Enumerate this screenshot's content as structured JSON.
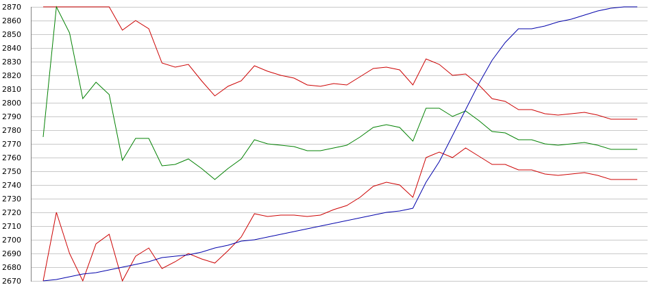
{
  "chart_data": {
    "type": "line",
    "title": "",
    "xlabel": "",
    "ylabel": "",
    "ylim": [
      2670,
      2870
    ],
    "yticks": [
      2670,
      2680,
      2690,
      2700,
      2710,
      2720,
      2730,
      2740,
      2750,
      2760,
      2770,
      2780,
      2790,
      2800,
      2810,
      2820,
      2830,
      2840,
      2850,
      2860,
      2870
    ],
    "grid": true,
    "legend": "none",
    "x": [
      0,
      1,
      2,
      3,
      4,
      5,
      6,
      7,
      8,
      9,
      10,
      11,
      12,
      13,
      14,
      15,
      16,
      17,
      18,
      19,
      20,
      21,
      22,
      23,
      24,
      25,
      26,
      27,
      28,
      29,
      30,
      31,
      32,
      33,
      34,
      35,
      36,
      37,
      38,
      39,
      40,
      41,
      42,
      43,
      44,
      45
    ],
    "series": [
      {
        "color": "#cc0000",
        "values": [
          2870,
          2870,
          2870,
          2870,
          2870,
          2870,
          2853,
          2860,
          2854,
          2829,
          2826,
          2828,
          2816,
          2805,
          2812,
          2816,
          2827,
          2823,
          2820,
          2818,
          2813,
          2812,
          2814,
          2813,
          2819,
          2825,
          2826,
          2824,
          2813,
          2832,
          2828,
          2820,
          2821,
          2813,
          2803,
          2801,
          2795,
          2795,
          2792,
          2791,
          2792,
          2793,
          2791,
          2788,
          2788,
          2788
        ]
      },
      {
        "color": "#008000",
        "values": [
          2775,
          2870,
          2851,
          2803,
          2815,
          2806,
          2758,
          2774,
          2774,
          2754,
          2755,
          2759,
          2752,
          2744,
          2752,
          2759,
          2773,
          2770,
          2769,
          2768,
          2765,
          2765,
          2767,
          2769,
          2775,
          2782,
          2784,
          2782,
          2772,
          2796,
          2796,
          2790,
          2794,
          2787,
          2779,
          2778,
          2773,
          2773,
          2770,
          2769,
          2770,
          2771,
          2769,
          2766,
          2766,
          2766
        ]
      },
      {
        "color": "#cc0000",
        "values": [
          2670,
          2720,
          2690,
          2670,
          2697,
          2704,
          2670,
          2688,
          2694,
          2679,
          2684,
          2690,
          2686,
          2683,
          2692,
          2702,
          2719,
          2717,
          2718,
          2718,
          2717,
          2718,
          2722,
          2725,
          2731,
          2739,
          2742,
          2740,
          2731,
          2760,
          2764,
          2760,
          2767,
          2761,
          2755,
          2755,
          2751,
          2751,
          2748,
          2747,
          2748,
          2749,
          2747,
          2744,
          2744,
          2744
        ]
      },
      {
        "color": "#0000aa",
        "values": [
          2670,
          2671,
          2673,
          2675,
          2676,
          2678,
          2680,
          2682,
          2684,
          2687,
          2688,
          2689,
          2691,
          2694,
          2696,
          2699,
          2700,
          2702,
          2704,
          2706,
          2708,
          2710,
          2712,
          2714,
          2716,
          2718,
          2720,
          2721,
          2723,
          2742,
          2757,
          2776,
          2795,
          2814,
          2831,
          2844,
          2854,
          2854,
          2856,
          2859,
          2861,
          2864,
          2867,
          2869,
          2870,
          2870
        ]
      }
    ]
  }
}
